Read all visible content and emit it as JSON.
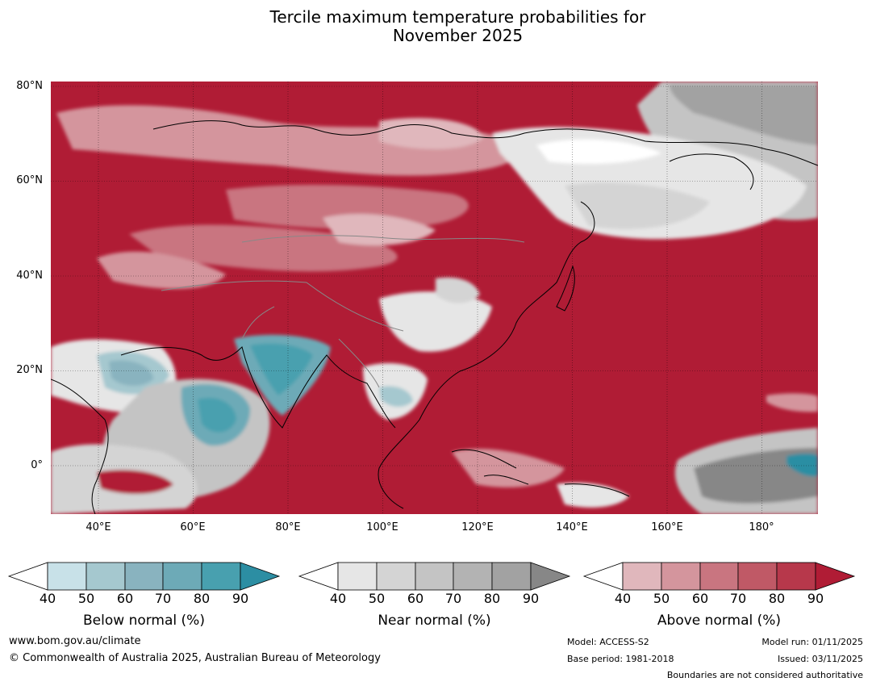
{
  "title": {
    "line1": "Tercile maximum temperature probabilities for",
    "line2": "November 2025"
  },
  "map": {
    "lat_labels": [
      "80°N",
      "60°N",
      "40°N",
      "20°N",
      "0°"
    ],
    "lon_labels": [
      "40°E",
      "60°E",
      "80°E",
      "100°E",
      "120°E",
      "140°E",
      "160°E",
      "180°"
    ],
    "region": "Asia",
    "lat_range": [
      -10,
      80
    ],
    "lon_range": [
      30,
      191
    ]
  },
  "legends": [
    {
      "name": "below",
      "title": "Below normal (%)",
      "ticks": [
        "40",
        "50",
        "60",
        "70",
        "80",
        "90"
      ],
      "colors": [
        "#ffffff",
        "#c8e1e8",
        "#a5c8cf",
        "#89b3bf",
        "#6daab7",
        "#48a0af",
        "#2c8ea3"
      ]
    },
    {
      "name": "near",
      "title": "Near normal (%)",
      "ticks": [
        "40",
        "50",
        "60",
        "70",
        "80",
        "90"
      ],
      "colors": [
        "#ffffff",
        "#e6e6e6",
        "#d4d4d4",
        "#c4c4c4",
        "#b3b3b3",
        "#a2a2a2",
        "#878787"
      ]
    },
    {
      "name": "above",
      "title": "Above normal (%)",
      "ticks": [
        "40",
        "50",
        "60",
        "70",
        "80",
        "90"
      ],
      "colors": [
        "#ffffff",
        "#e0b7bc",
        "#d4959d",
        "#c97580",
        "#c05966",
        "#b7384b",
        "#b01c35"
      ]
    }
  ],
  "footer": {
    "website": "www.bom.gov.au/climate",
    "copyright": "© Commonwealth of Australia 2025, Australian Bureau of Meteorology",
    "model": "Model: ACCESS-S2",
    "base_period": "Base period: 1981-2018",
    "model_run": "Model run: 01/11/2025",
    "issued": "Issued: 03/11/2025",
    "disclaimer": "Boundaries are not considered authoritative"
  }
}
